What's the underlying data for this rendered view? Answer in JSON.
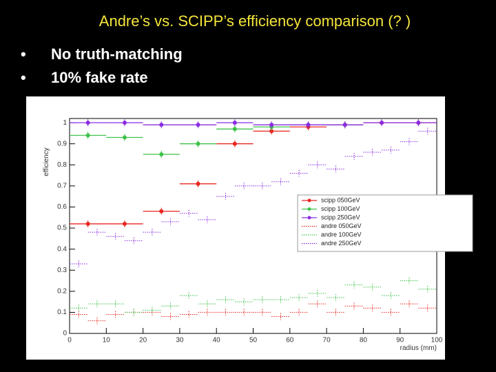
{
  "slide": {
    "title": "Andre’s vs. SCIPP’s efficiency comparison (? )",
    "bullets": [
      "No truth-matching",
      "10% fake rate"
    ]
  },
  "chart_data": {
    "type": "scatter",
    "xlabel": "radius (mm)",
    "ylabel": "efficiency",
    "xlim": [
      0,
      100
    ],
    "ylim": [
      0,
      1.02
    ],
    "xticks": [
      0,
      10,
      20,
      30,
      40,
      50,
      60,
      70,
      80,
      90,
      100
    ],
    "yticks": [
      0,
      0.1,
      0.2,
      0.3,
      0.4,
      0.5,
      0.6,
      0.7,
      0.8,
      0.9,
      1
    ],
    "legend": "right",
    "series": [
      {
        "name": "scipp 050GeV",
        "color": "#e8251f",
        "marker": "circle",
        "dash": "solid",
        "x": [
          5,
          15,
          25,
          35,
          45,
          55,
          65,
          75,
          85,
          95
        ],
        "values": [
          0.52,
          0.52,
          0.58,
          0.71,
          0.9,
          0.96,
          0.98,
          0.99,
          1,
          1
        ]
      },
      {
        "name": "scipp 100GeV",
        "color": "#3fc24a",
        "marker": "circle",
        "dash": "solid",
        "x": [
          5,
          15,
          25,
          35,
          45,
          55,
          65,
          75
        ],
        "values": [
          0.94,
          0.93,
          0.85,
          0.9,
          0.97,
          0.98,
          0.99,
          0.99
        ]
      },
      {
        "name": "scipp 250GeV",
        "color": "#8a2be2",
        "marker": "circle",
        "dash": "solid",
        "x": [
          5,
          15,
          25,
          35,
          45,
          55,
          65,
          75,
          85,
          95
        ],
        "values": [
          1,
          1,
          0.99,
          0.99,
          1,
          0.99,
          0.99,
          0.99,
          1,
          1
        ]
      },
      {
        "name": "andre 050GeV",
        "color": "#e8251f",
        "marker": "none",
        "dash": "dotted",
        "x": [
          2.5,
          7.5,
          12.5,
          17.5,
          22.5,
          27.5,
          32.5,
          37.5,
          42.5,
          47.5,
          52.5,
          57.5,
          62.5,
          67.5,
          72.5,
          77.5,
          82.5,
          87.5,
          92.5,
          97.5
        ],
        "values": [
          0.09,
          0.06,
          0.09,
          0.1,
          0.1,
          0.08,
          0.09,
          0.1,
          0.1,
          0.1,
          0.1,
          0.08,
          0.1,
          0.14,
          0.1,
          0.13,
          0.12,
          0.1,
          0.14,
          0.12
        ]
      },
      {
        "name": "andre 100GeV",
        "color": "#3fc24a",
        "marker": "none",
        "dash": "dotted",
        "x": [
          2.5,
          7.5,
          12.5,
          17.5,
          22.5,
          27.5,
          32.5,
          37.5,
          42.5,
          47.5,
          52.5,
          57.5,
          62.5,
          67.5,
          72.5,
          77.5,
          82.5,
          87.5,
          92.5,
          97.5
        ],
        "values": [
          0.12,
          0.14,
          0.14,
          0.1,
          0.11,
          0.13,
          0.18,
          0.14,
          0.16,
          0.15,
          0.16,
          0.16,
          0.17,
          0.19,
          0.17,
          0.23,
          0.22,
          0.18,
          0.25,
          0.21
        ]
      },
      {
        "name": "andre 250GeV",
        "color": "#8a2be2",
        "marker": "none",
        "dash": "dotted",
        "x": [
          2.5,
          7.5,
          12.5,
          17.5,
          22.5,
          27.5,
          32.5,
          37.5,
          42.5,
          47.5,
          52.5,
          57.5,
          62.5,
          67.5,
          72.5,
          77.5,
          82.5,
          87.5,
          92.5,
          97.5
        ],
        "values": [
          0.33,
          0.48,
          0.46,
          0.44,
          0.48,
          0.53,
          0.57,
          0.54,
          0.65,
          0.7,
          0.7,
          0.72,
          0.76,
          0.8,
          0.78,
          0.84,
          0.86,
          0.87,
          0.91,
          0.96
        ]
      }
    ]
  }
}
